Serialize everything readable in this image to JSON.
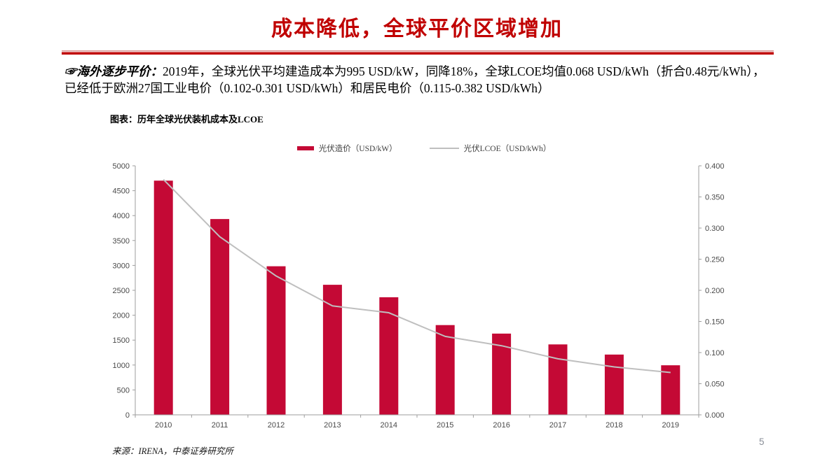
{
  "slide": {
    "title": "成本降低，全球平价区域增加",
    "page_number": "5"
  },
  "intro": {
    "lead": "☞海外逐步平价：",
    "body": "2019年，全球光伏平均建造成本为995 USD/kW，同降18%，全球LCOE均值0.068 USD/kWh（折合0.48元/kWh），已经低于欧洲27国工业电价（0.102-0.301 USD/kWh）和居民电价（0.115-0.382 USD/kWh）"
  },
  "figure": {
    "caption": "图表：历年全球光伏装机成本及LCOE",
    "source": "来源：IRENA，中泰证券研究所"
  },
  "chart_data": {
    "type": "bar",
    "subtype": "bar+line dual-axis",
    "title": "历年全球光伏装机成本及LCOE",
    "categories": [
      "2010",
      "2011",
      "2012",
      "2013",
      "2014",
      "2015",
      "2016",
      "2017",
      "2018",
      "2019"
    ],
    "series": [
      {
        "name": "光伏造价（USD/kW）",
        "type": "bar",
        "axis": "left",
        "color": "#c40935",
        "values": [
          4702,
          3931,
          2983,
          2611,
          2361,
          1802,
          1631,
          1414,
          1210,
          995
        ]
      },
      {
        "name": "光伏LCOE（USD/kWh）",
        "type": "line",
        "axis": "right",
        "color": "#bfbfbf",
        "values": [
          0.378,
          0.286,
          0.223,
          0.175,
          0.164,
          0.126,
          0.111,
          0.09,
          0.077,
          0.068
        ]
      }
    ],
    "left_axis": {
      "min": 0,
      "max": 5000,
      "step": 500,
      "decimals": 0
    },
    "right_axis": {
      "min": 0,
      "max": 0.4,
      "step": 0.05,
      "decimals": 3
    },
    "axis_color": "#9e9e9e",
    "grid": false,
    "legend_position": "top-center"
  },
  "colors": {
    "title_red": "#c00000",
    "bar_red": "#c40935",
    "line_gray": "#bfbfbf"
  }
}
